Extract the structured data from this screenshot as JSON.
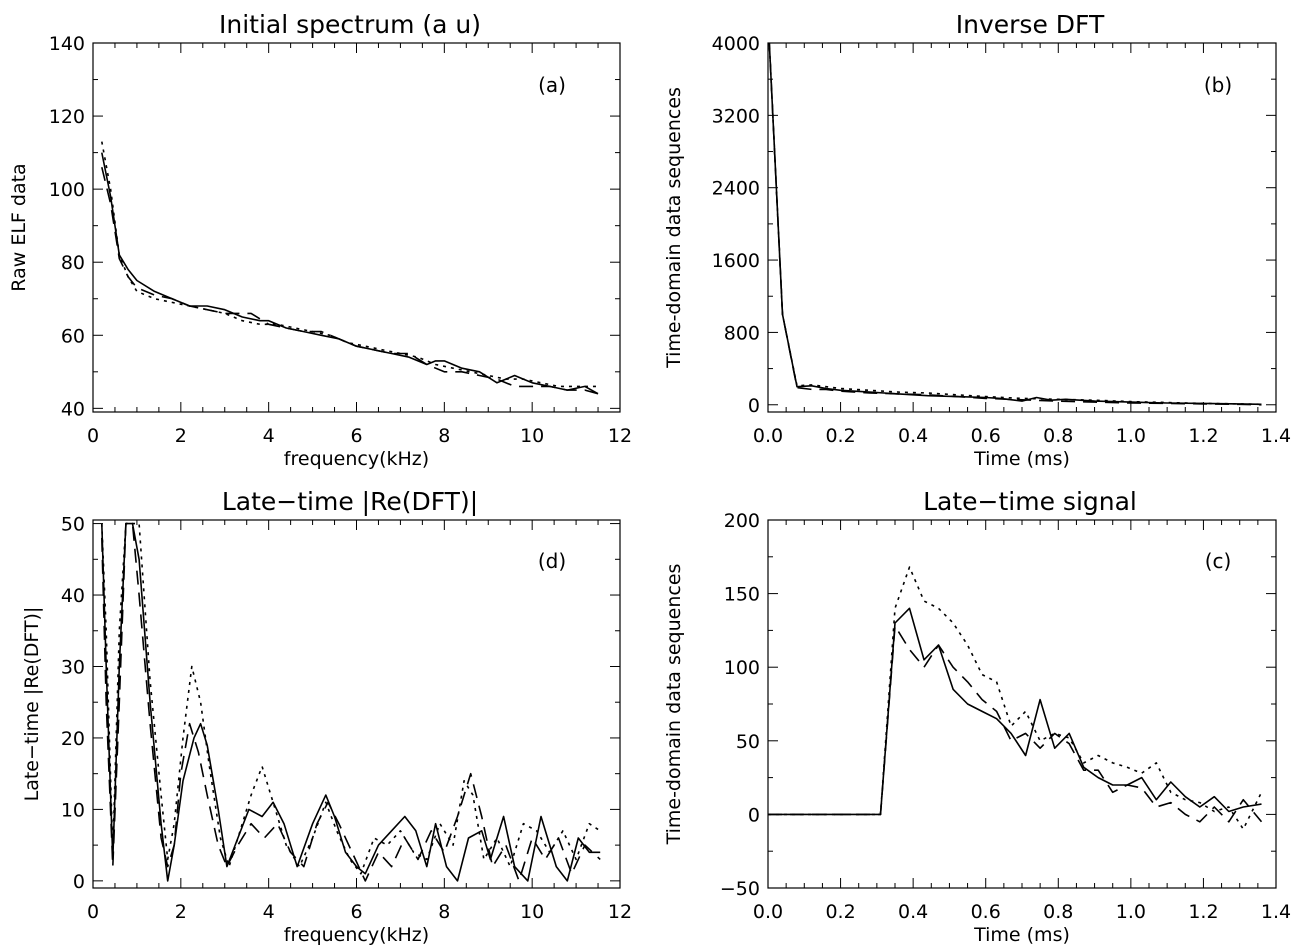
{
  "chart_data": [
    {
      "type": "line",
      "title": "Initial spectrum (a u)",
      "xlabel": "frequency(kHz)",
      "ylabel": "Raw ELF data",
      "tag": "(a)",
      "xlim": [
        0,
        12
      ],
      "ylim": [
        39,
        140
      ],
      "xticks": [
        0,
        2,
        4,
        6,
        8,
        10,
        12
      ],
      "yticks": [
        40,
        60,
        80,
        100,
        120,
        140
      ],
      "series": [
        {
          "style": "solid",
          "x": [
            0.2,
            0.4,
            0.6,
            0.8,
            1,
            1.4,
            1.8,
            2.2,
            2.6,
            3,
            3.4,
            3.8,
            4,
            4.4,
            4.8,
            5.2,
            5.6,
            6,
            6.4,
            6.8,
            7.2,
            7.6,
            7.8,
            8,
            8.4,
            8.8,
            9.2,
            9.6,
            10,
            10.4,
            10.8,
            11.2,
            11.5
          ],
          "y": [
            110,
            98,
            82,
            78,
            75,
            72,
            70,
            68,
            68,
            67,
            65,
            64,
            64,
            62,
            61,
            60,
            59,
            57,
            56,
            55,
            54,
            52,
            53,
            53,
            51,
            50,
            47,
            49,
            47,
            46,
            45,
            46,
            44
          ]
        },
        {
          "style": "dashed",
          "x": [
            0.2,
            0.4,
            0.6,
            0.8,
            1,
            1.4,
            1.8,
            2.2,
            2.6,
            3,
            3.2,
            3.6,
            4,
            4.4,
            4.8,
            5.2,
            5.6,
            6,
            6.4,
            6.8,
            7.2,
            7.6,
            8,
            8.4,
            8.8,
            9.2,
            9.6,
            10,
            10.4,
            10.8,
            11.2,
            11.5
          ],
          "y": [
            106,
            96,
            81,
            76,
            73,
            71,
            70,
            68,
            67,
            66,
            66,
            66,
            63,
            62,
            61,
            61,
            59,
            57,
            56,
            55,
            55,
            52,
            50,
            50,
            49,
            48,
            46,
            46,
            46,
            45,
            45,
            44
          ]
        },
        {
          "style": "dotted",
          "x": [
            0.2,
            0.4,
            0.6,
            0.8,
            1,
            1.4,
            1.8,
            2.2,
            2.6,
            3,
            3.4,
            3.8,
            4.2,
            4.6,
            5,
            5.4,
            5.8,
            6.2,
            6.6,
            7,
            7.4,
            7.8,
            8.2,
            8.6,
            9,
            9.4,
            9.8,
            10.2,
            10.6,
            11,
            11.5
          ],
          "y": [
            113,
            100,
            82,
            76,
            72,
            70,
            69,
            68,
            67,
            66,
            64,
            63,
            63,
            62,
            61,
            60,
            58,
            57,
            56,
            55,
            54,
            52,
            51,
            50,
            49,
            48,
            48,
            47,
            46,
            46,
            46
          ]
        }
      ]
    },
    {
      "type": "line",
      "title": "Inverse DFT",
      "xlabel": "Time (ms)",
      "ylabel": "Time-domain data sequences",
      "tag": "(b)",
      "xlim": [
        0,
        1.4
      ],
      "ylim": [
        -80,
        4000
      ],
      "xticks": [
        0.0,
        0.2,
        0.4,
        0.6,
        0.8,
        1.0,
        1.2,
        1.4
      ],
      "xtick_labels": [
        "0.0",
        "0.2",
        "0.4",
        "0.6",
        "0.8",
        "1.0",
        "1.2",
        "1.4"
      ],
      "yticks": [
        0,
        800,
        1600,
        2400,
        3200,
        4000
      ],
      "series": [
        {
          "style": "solid",
          "x": [
            0.0,
            0.04,
            0.08,
            0.12,
            0.16,
            0.2,
            0.28,
            0.36,
            0.44,
            0.52,
            0.6,
            0.64,
            0.7,
            0.74,
            0.78,
            0.82,
            0.9,
            1.0,
            1.1,
            1.2,
            1.3,
            1.36
          ],
          "y": [
            4300,
            1000,
            200,
            210,
            180,
            160,
            140,
            120,
            100,
            90,
            80,
            70,
            40,
            80,
            50,
            60,
            40,
            30,
            20,
            15,
            10,
            5
          ]
        },
        {
          "style": "dashed",
          "x": [
            0.0,
            0.04,
            0.08,
            0.12,
            0.16,
            0.2,
            0.28,
            0.36,
            0.44,
            0.52,
            0.6,
            0.7,
            0.8,
            0.9,
            1.0,
            1.1,
            1.2,
            1.3,
            1.36
          ],
          "y": [
            4300,
            1000,
            190,
            170,
            170,
            150,
            130,
            120,
            110,
            90,
            70,
            55,
            40,
            30,
            20,
            15,
            10,
            5,
            0
          ]
        },
        {
          "style": "dotted",
          "x": [
            0.0,
            0.04,
            0.08,
            0.12,
            0.16,
            0.2,
            0.28,
            0.36,
            0.44,
            0.52,
            0.6,
            0.7,
            0.8,
            0.9,
            1.0,
            1.1,
            1.2,
            1.3,
            1.36
          ],
          "y": [
            4300,
            1000,
            210,
            220,
            200,
            180,
            160,
            140,
            130,
            110,
            90,
            70,
            60,
            50,
            35,
            25,
            15,
            10,
            5
          ]
        }
      ]
    },
    {
      "type": "line",
      "title": "Late−time |Re(DFT)|",
      "xlabel": "frequency(kHz)",
      "ylabel": "Late−time |Re(DFT)|",
      "tag": "(d)",
      "xlim": [
        0,
        12
      ],
      "ylim": [
        -1,
        50.5
      ],
      "xticks": [
        0,
        2,
        4,
        6,
        8,
        10,
        12
      ],
      "yticks": [
        0,
        10,
        20,
        30,
        40,
        50
      ],
      "series": [
        {
          "style": "solid",
          "x": [
            0.2,
            0.3,
            0.45,
            0.6,
            0.75,
            0.9,
            1.05,
            1.3,
            1.55,
            1.7,
            1.85,
            2.05,
            2.3,
            2.45,
            2.6,
            2.85,
            3.05,
            3.3,
            3.55,
            3.85,
            4.1,
            4.35,
            4.65,
            5.0,
            5.3,
            5.5,
            5.75,
            6.0,
            6.2,
            6.5,
            6.8,
            7.1,
            7.35,
            7.6,
            7.8,
            8.05,
            8.3,
            8.55,
            8.85,
            9.05,
            9.35,
            9.6,
            9.9,
            10.2,
            10.55,
            10.8,
            11.05,
            11.3,
            11.55
          ],
          "y": [
            50,
            30,
            3,
            30,
            50,
            50,
            45,
            25,
            8,
            0,
            5,
            14,
            20,
            22,
            19,
            10,
            2,
            6,
            10,
            9,
            11,
            8,
            2,
            8,
            12,
            9,
            4,
            2,
            1,
            5,
            7,
            9,
            7,
            2,
            8,
            2,
            0,
            6,
            7,
            3,
            9,
            2,
            0,
            9,
            2,
            0,
            6,
            4,
            4
          ]
        },
        {
          "style": "dashed",
          "x": [
            0.2,
            0.3,
            0.45,
            0.6,
            0.75,
            0.9,
            1.05,
            1.3,
            1.55,
            1.7,
            1.85,
            2.0,
            2.2,
            2.4,
            2.6,
            2.85,
            3.05,
            3.3,
            3.6,
            3.9,
            4.2,
            4.5,
            4.8,
            5.1,
            5.35,
            5.6,
            5.9,
            6.2,
            6.5,
            6.8,
            7.1,
            7.4,
            7.7,
            8.0,
            8.3,
            8.6,
            8.85,
            9.1,
            9.4,
            9.7,
            10.0,
            10.3,
            10.6,
            10.9,
            11.2,
            11.55
          ],
          "y": [
            48,
            25,
            2,
            25,
            50,
            50,
            40,
            22,
            6,
            2,
            5,
            15,
            22,
            18,
            12,
            5,
            2,
            5,
            8,
            6,
            8,
            4,
            2,
            8,
            11,
            8,
            4,
            0,
            4,
            2,
            6,
            3,
            7,
            4,
            9,
            15,
            9,
            2,
            5,
            0,
            6,
            3,
            6,
            1,
            5,
            3
          ]
        },
        {
          "style": "dotted",
          "x": [
            0.2,
            0.3,
            0.45,
            0.6,
            0.75,
            0.9,
            1.05,
            1.3,
            1.55,
            1.7,
            1.85,
            2.05,
            2.25,
            2.45,
            2.65,
            2.9,
            3.1,
            3.35,
            3.6,
            3.85,
            4.1,
            4.4,
            4.7,
            5.0,
            5.3,
            5.55,
            5.85,
            6.1,
            6.4,
            6.7,
            7.0,
            7.3,
            7.6,
            7.9,
            8.2,
            8.45,
            8.65,
            8.9,
            9.2,
            9.5,
            9.8,
            10.1,
            10.4,
            10.7,
            11.0,
            11.3,
            11.55
          ],
          "y": [
            50,
            35,
            4,
            35,
            50,
            50,
            50,
            28,
            12,
            3,
            8,
            20,
            30,
            25,
            16,
            6,
            2,
            7,
            12,
            16,
            11,
            5,
            2,
            6,
            11,
            7,
            3,
            1,
            6,
            5,
            7,
            4,
            3,
            8,
            5,
            14,
            12,
            3,
            6,
            2,
            8,
            7,
            4,
            7,
            3,
            8,
            7
          ]
        }
      ]
    },
    {
      "type": "line",
      "title": "Late−time signal",
      "xlabel": "Time (ms)",
      "ylabel": "Time-domain data sequences",
      "tag": "(c)",
      "xlim": [
        0,
        1.4
      ],
      "ylim": [
        -50,
        200
      ],
      "xticks": [
        0.0,
        0.2,
        0.4,
        0.6,
        0.8,
        1.0,
        1.2,
        1.4
      ],
      "xtick_labels": [
        "0.0",
        "0.2",
        "0.4",
        "0.6",
        "0.8",
        "1.0",
        "1.2",
        "1.4"
      ],
      "yticks": [
        -50,
        0,
        50,
        100,
        150,
        200
      ],
      "series": [
        {
          "style": "solid",
          "x": [
            0.0,
            0.31,
            0.35,
            0.39,
            0.43,
            0.47,
            0.51,
            0.55,
            0.59,
            0.63,
            0.67,
            0.71,
            0.75,
            0.79,
            0.83,
            0.87,
            0.91,
            0.95,
            0.99,
            1.03,
            1.07,
            1.11,
            1.15,
            1.19,
            1.23,
            1.27,
            1.31,
            1.36
          ],
          "y": [
            0,
            0,
            130,
            140,
            105,
            115,
            85,
            75,
            70,
            65,
            55,
            40,
            78,
            45,
            55,
            32,
            25,
            20,
            20,
            25,
            10,
            22,
            12,
            5,
            12,
            2,
            5,
            7
          ]
        },
        {
          "style": "dashed",
          "x": [
            0.0,
            0.31,
            0.35,
            0.39,
            0.43,
            0.47,
            0.51,
            0.55,
            0.59,
            0.63,
            0.67,
            0.71,
            0.75,
            0.79,
            0.83,
            0.87,
            0.91,
            0.95,
            0.99,
            1.03,
            1.07,
            1.11,
            1.15,
            1.19,
            1.23,
            1.27,
            1.31,
            1.36
          ],
          "y": [
            0,
            0,
            128,
            112,
            100,
            115,
            100,
            90,
            78,
            70,
            50,
            55,
            45,
            55,
            48,
            30,
            30,
            15,
            20,
            18,
            5,
            8,
            0,
            -5,
            5,
            -5,
            10,
            -5
          ]
        },
        {
          "style": "dotted",
          "x": [
            0.0,
            0.31,
            0.35,
            0.39,
            0.43,
            0.47,
            0.51,
            0.55,
            0.59,
            0.63,
            0.67,
            0.71,
            0.75,
            0.79,
            0.83,
            0.87,
            0.91,
            0.95,
            0.99,
            1.03,
            1.07,
            1.11,
            1.15,
            1.19,
            1.23,
            1.27,
            1.31,
            1.36
          ],
          "y": [
            0,
            0,
            140,
            168,
            145,
            140,
            130,
            115,
            95,
            90,
            60,
            70,
            50,
            55,
            52,
            35,
            40,
            35,
            32,
            28,
            35,
            15,
            10,
            8,
            2,
            5,
            -10,
            15
          ]
        }
      ]
    }
  ]
}
